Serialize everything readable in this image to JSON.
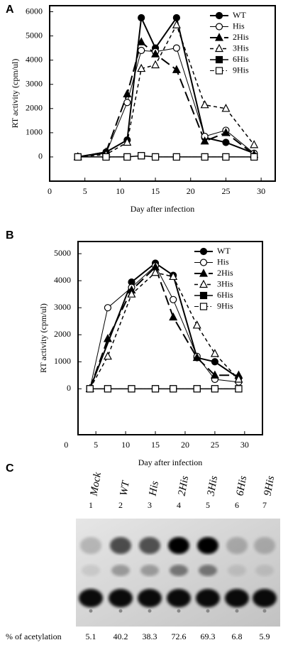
{
  "chart_data": [
    {
      "type": "line",
      "label": "A",
      "xlabel": "Day after infection",
      "ylabel": "RT activity (cpm/ul)",
      "xlim": [
        0,
        32
      ],
      "xticks": [
        0,
        5,
        10,
        15,
        20,
        25,
        30
      ],
      "ylim": [
        -1000,
        6250
      ],
      "yticks": [
        0,
        1000,
        2000,
        3000,
        4000,
        5000,
        6000
      ],
      "legend": "upper right",
      "series": [
        {
          "name": "WT",
          "color": "#000000",
          "line_style": "solid",
          "line_width": 2,
          "marker": "circle",
          "marker_fill": "filled",
          "x": [
            4,
            8,
            11,
            13,
            15,
            18,
            22,
            25,
            29
          ],
          "values": [
            0,
            200,
            700,
            5750,
            4500,
            5750,
            800,
            600,
            150
          ]
        },
        {
          "name": "His",
          "color": "#000000",
          "line_style": "solid",
          "line_width": 1,
          "marker": "circle",
          "marker_fill": "open",
          "x": [
            4,
            8,
            11,
            13,
            15,
            18,
            22,
            25,
            29
          ],
          "values": [
            0,
            150,
            2250,
            4400,
            4350,
            4500,
            850,
            1100,
            150
          ]
        },
        {
          "name": "2His",
          "color": "#000000",
          "line_style": "longdash",
          "line_width": 2,
          "marker": "triangle",
          "marker_fill": "filled",
          "x": [
            4,
            8,
            11,
            13,
            15,
            18,
            22,
            25,
            29
          ],
          "values": [
            0,
            200,
            2600,
            4750,
            4250,
            3600,
            650,
            1000,
            100
          ]
        },
        {
          "name": "3His",
          "color": "#000000",
          "line_style": "shortdash",
          "line_width": 1.5,
          "marker": "triangle",
          "marker_fill": "open",
          "x": [
            4,
            8,
            11,
            13,
            15,
            18,
            22,
            25,
            29
          ],
          "values": [
            0,
            100,
            600,
            3650,
            3800,
            5450,
            2150,
            2000,
            500
          ]
        },
        {
          "name": "6His",
          "color": "#000000",
          "line_style": "solid",
          "line_width": 1.5,
          "marker": "square",
          "marker_fill": "filled",
          "x": [
            4,
            8,
            11,
            13,
            15,
            18,
            22,
            25,
            29
          ],
          "values": [
            0,
            0,
            0,
            50,
            0,
            0,
            0,
            0,
            0
          ]
        },
        {
          "name": "9His",
          "color": "#000000",
          "line_style": "dashdot",
          "line_width": 1,
          "marker": "square",
          "marker_fill": "open",
          "x": [
            4,
            8,
            11,
            13,
            15,
            18,
            22,
            25,
            29
          ],
          "values": [
            0,
            0,
            0,
            50,
            0,
            0,
            0,
            0,
            0
          ]
        }
      ]
    },
    {
      "type": "line",
      "label": "B",
      "xlabel": "Day after infection",
      "ylabel": "RT activity (cpm/ul)",
      "xlim": [
        2,
        33
      ],
      "xticks": [
        0,
        5,
        10,
        15,
        20,
        25,
        30
      ],
      "ylim": [
        -1700,
        5450
      ],
      "yticks": [
        0,
        1000,
        2000,
        3000,
        4000,
        5000
      ],
      "legend": "upper right",
      "series": [
        {
          "name": "WT",
          "color": "#000000",
          "line_style": "solid",
          "line_width": 2,
          "marker": "circle",
          "marker_fill": "filled",
          "x": [
            4,
            11,
            15,
            18,
            22,
            25,
            29
          ],
          "values": [
            0,
            3950,
            4650,
            4200,
            1150,
            1000,
            400
          ]
        },
        {
          "name": "His",
          "color": "#000000",
          "line_style": "solid",
          "line_width": 1,
          "marker": "circle",
          "marker_fill": "open",
          "x": [
            4,
            7,
            11,
            15,
            18,
            22,
            25,
            29
          ],
          "values": [
            0,
            3000,
            3750,
            4550,
            3300,
            1200,
            350,
            250
          ]
        },
        {
          "name": "2His",
          "color": "#000000",
          "line_style": "longdash",
          "line_width": 2,
          "marker": "triangle",
          "marker_fill": "filled",
          "x": [
            4,
            7,
            11,
            15,
            18,
            22,
            25,
            29
          ],
          "values": [
            0,
            1850,
            3650,
            4500,
            2650,
            1150,
            500,
            500
          ]
        },
        {
          "name": "3His",
          "color": "#000000",
          "line_style": "shortdash",
          "line_width": 1.5,
          "marker": "triangle",
          "marker_fill": "open",
          "x": [
            4,
            7,
            11,
            15,
            18,
            22,
            25,
            29
          ],
          "values": [
            0,
            1200,
            3500,
            4300,
            4150,
            2350,
            1300,
            350
          ]
        },
        {
          "name": "6His",
          "color": "#000000",
          "line_style": "solid",
          "line_width": 1.5,
          "marker": "square",
          "marker_fill": "filled",
          "x": [
            4,
            7,
            11,
            15,
            18,
            22,
            25,
            29
          ],
          "values": [
            0,
            0,
            0,
            0,
            0,
            0,
            0,
            0
          ]
        },
        {
          "name": "9His",
          "color": "#000000",
          "line_style": "dashdot",
          "line_width": 1,
          "marker": "square",
          "marker_fill": "open",
          "x": [
            4,
            7,
            11,
            15,
            18,
            22,
            25,
            29
          ],
          "values": [
            0,
            0,
            0,
            0,
            0,
            0,
            0,
            0
          ]
        }
      ]
    }
  ],
  "panel_c": {
    "label": "C",
    "lanes": [
      "Mock",
      "WT",
      "His",
      "2His",
      "3His",
      "6His",
      "9His"
    ],
    "lane_numbers": [
      "1",
      "2",
      "3",
      "4",
      "5",
      "6",
      "7"
    ],
    "row_label": "% of acetylation",
    "acetylation": [
      5.1,
      40.2,
      38.3,
      72.6,
      69.3,
      6.8,
      5.9
    ]
  }
}
